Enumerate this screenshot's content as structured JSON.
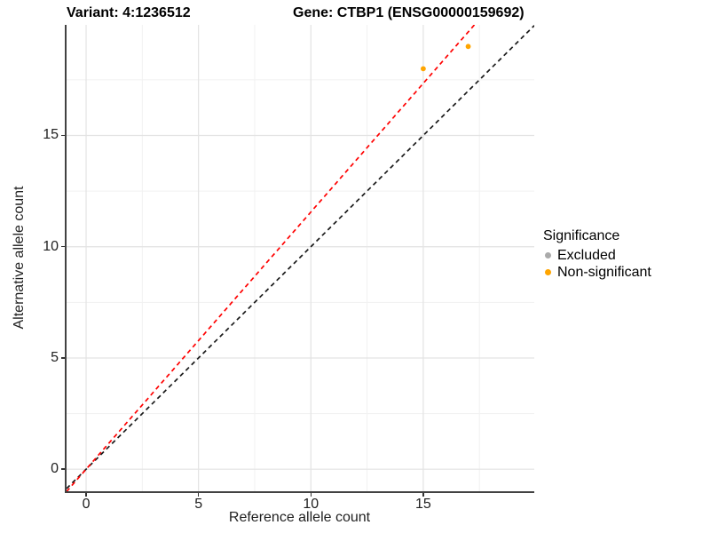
{
  "header": {
    "title_left": "Variant: 4:1236512",
    "title_right": "Gene: CTBP1 (ENSG00000159692)"
  },
  "chart_data": {
    "type": "scatter",
    "xlabel": "Reference allele count",
    "ylabel": "Alternative allele count",
    "xlim": [
      -0.87,
      19.94
    ],
    "ylim": [
      -0.99,
      19.97
    ],
    "x_ticks": [
      0,
      5,
      10,
      15
    ],
    "y_ticks": [
      0,
      5,
      10,
      15
    ],
    "x_minor_ticks": [
      2.5,
      7.5,
      12.5,
      17.5
    ],
    "y_minor_ticks": [
      2.5,
      7.5,
      12.5,
      17.5
    ],
    "grid": true,
    "points": [
      {
        "x": 15,
        "y": 18,
        "series": "Non-significant",
        "color": "#ffa500"
      },
      {
        "x": 17,
        "y": 19,
        "series": "Non-significant",
        "color": "#ffa500"
      }
    ],
    "lines": [
      {
        "name": "identity-line",
        "slope": 1,
        "intercept": 0,
        "color": "#1a1a1a",
        "style": "dashed"
      },
      {
        "name": "fit-line",
        "slope": 1.156,
        "intercept": 0,
        "color": "#ff0000",
        "style": "dashed"
      }
    ],
    "legend": {
      "title": "Significance",
      "position": "right",
      "entries": [
        {
          "label": "Excluded",
          "color": "#aaaaaa"
        },
        {
          "label": "Non-significant",
          "color": "#ffa500"
        }
      ]
    },
    "colors": {
      "grid_major": "#e3e3e3",
      "grid_minor": "#f1f1f1",
      "axis_line": "#424242"
    }
  }
}
